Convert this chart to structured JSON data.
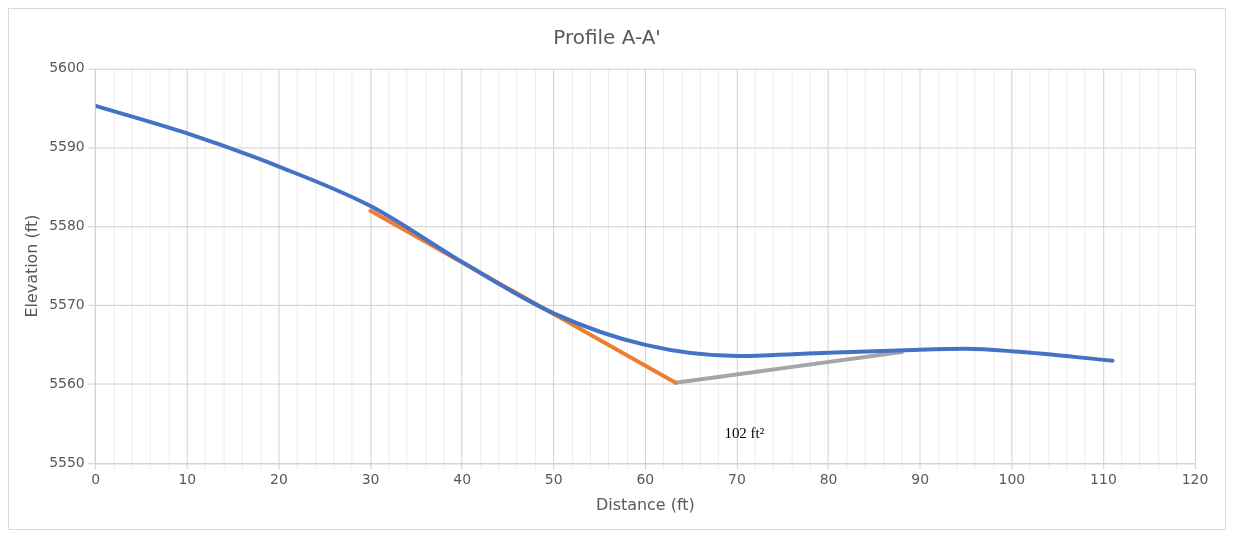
{
  "chart_data": {
    "type": "line",
    "title": "Profile A-A'",
    "xlabel": "Distance (ft)",
    "ylabel": "Elevation (ft)",
    "xlim": [
      0,
      120
    ],
    "ylim": [
      5550,
      5600
    ],
    "xticks": [
      0,
      {
        "value": 2,
        "label": null
      },
      {
        "value": 4,
        "label": null
      },
      {
        "value": 6,
        "label": null
      },
      {
        "value": 8,
        "label": null
      },
      10,
      {
        "value": 12,
        "label": null
      },
      {
        "value": 14,
        "label": null
      },
      {
        "value": 16,
        "label": null
      },
      {
        "value": 18,
        "label": null
      },
      20,
      {
        "value": 22,
        "label": null
      },
      {
        "value": 24,
        "label": null
      },
      {
        "value": 26,
        "label": null
      },
      {
        "value": 28,
        "label": null
      },
      30,
      {
        "value": 32,
        "label": null
      },
      {
        "value": 34,
        "label": null
      },
      {
        "value": 36,
        "label": null
      },
      {
        "value": 38,
        "label": null
      },
      40,
      {
        "value": 42,
        "label": null
      },
      {
        "value": 44,
        "label": null
      },
      {
        "value": 46,
        "label": null
      },
      {
        "value": 48,
        "label": null
      },
      50,
      {
        "value": 52,
        "label": null
      },
      {
        "value": 54,
        "label": null
      },
      {
        "value": 56,
        "label": null
      },
      {
        "value": 58,
        "label": null
      },
      60,
      {
        "value": 62,
        "label": null
      },
      {
        "value": 64,
        "label": null
      },
      {
        "value": 66,
        "label": null
      },
      {
        "value": 68,
        "label": null
      },
      70,
      {
        "value": 72,
        "label": null
      },
      {
        "value": 74,
        "label": null
      },
      {
        "value": 76,
        "label": null
      },
      {
        "value": 78,
        "label": null
      },
      80,
      {
        "value": 82,
        "label": null
      },
      {
        "value": 84,
        "label": null
      },
      {
        "value": 86,
        "label": null
      },
      {
        "value": 88,
        "label": null
      },
      90,
      {
        "value": 92,
        "label": null
      },
      {
        "value": 94,
        "label": null
      },
      {
        "value": 96,
        "label": null
      },
      {
        "value": 98,
        "label": null
      },
      100,
      {
        "value": 102,
        "label": null
      },
      {
        "value": 104,
        "label": null
      },
      {
        "value": 106,
        "label": null
      },
      {
        "value": 108,
        "label": null
      },
      110,
      {
        "value": 112,
        "label": null
      },
      {
        "value": 114,
        "label": null
      },
      {
        "value": 116,
        "label": null
      },
      {
        "value": 118,
        "label": null
      },
      120
    ],
    "yticks": [
      5550,
      5560,
      5570,
      5580,
      5590,
      5600
    ],
    "grid": true,
    "legend": false,
    "marker": "none",
    "line_style": "solid",
    "series": [
      {
        "color": "#4472c4",
        "x": [
          0,
          10,
          20,
          30,
          40,
          50,
          60,
          70,
          80,
          90,
          95,
          100,
          111
        ],
        "values": [
          5595.3,
          5591.8,
          5587.6,
          5582.6,
          5575.5,
          5569,
          5565,
          5563.6,
          5564,
          5564.4,
          5564.5,
          5564.2,
          5563
        ]
      },
      {
        "color": "#ed7d31",
        "x": [
          30,
          63.3
        ],
        "values": [
          5582,
          5560.2
        ]
      },
      {
        "color": "#a5a5a5",
        "x": [
          63.3,
          88
        ],
        "values": [
          5560.2,
          5564.1
        ]
      }
    ],
    "annotations": [
      "102 ft²"
    ]
  }
}
